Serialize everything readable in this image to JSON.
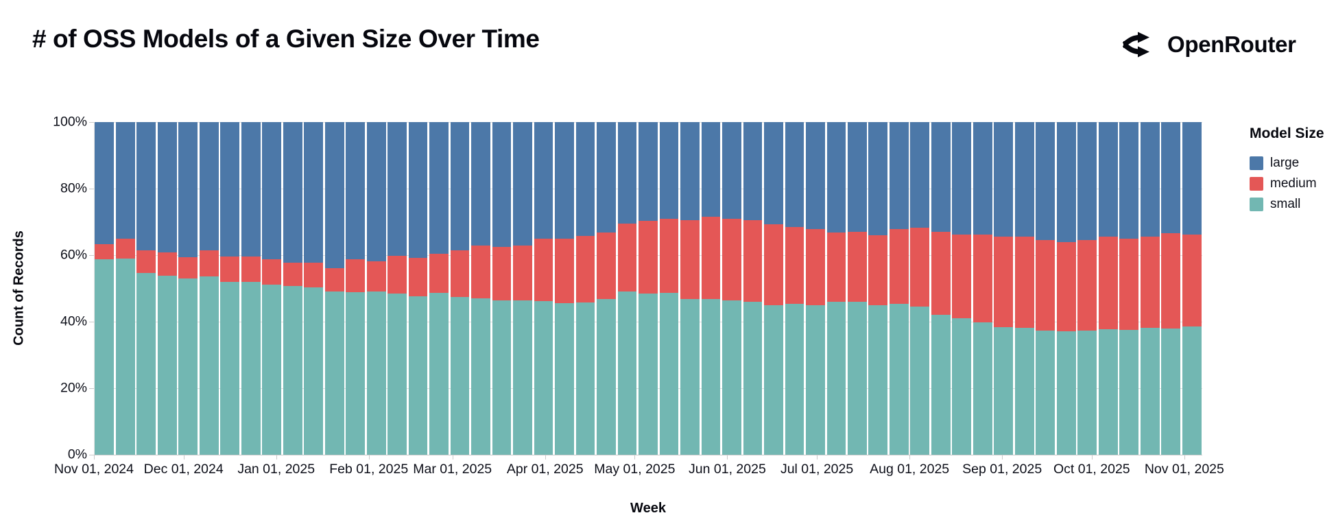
{
  "header": {
    "title": "# of OSS Models of a Given Size Over Time",
    "brand": "OpenRouter"
  },
  "chart_data": {
    "type": "bar",
    "stacked": "normalize",
    "title": "# of OSS Models of a Given Size Over Time",
    "xlabel": "Week",
    "ylabel": "Count of Records",
    "ylim": [
      0,
      100
    ],
    "grid": true,
    "legend_position": "right",
    "colors": {
      "large": "#4c78a8",
      "medium": "#e45756",
      "small": "#72b7b2"
    },
    "y_ticks": [
      {
        "label": "0%",
        "value": 0
      },
      {
        "label": "20%",
        "value": 20
      },
      {
        "label": "40%",
        "value": 40
      },
      {
        "label": "60%",
        "value": 60
      },
      {
        "label": "80%",
        "value": 80
      },
      {
        "label": "100%",
        "value": 100
      }
    ],
    "total_days": 371,
    "x_ticks": [
      {
        "label": "Nov 01, 2024",
        "day": 0
      },
      {
        "label": "Dec 01, 2024",
        "day": 30
      },
      {
        "label": "Jan 01, 2025",
        "day": 61
      },
      {
        "label": "Feb 01, 2025",
        "day": 92
      },
      {
        "label": "Mar 01, 2025",
        "day": 120
      },
      {
        "label": "Apr 01, 2025",
        "day": 151
      },
      {
        "label": "May 01, 2025",
        "day": 181
      },
      {
        "label": "Jun 01, 2025",
        "day": 212
      },
      {
        "label": "Jul 01, 2025",
        "day": 242
      },
      {
        "label": "Aug 01, 2025",
        "day": 273
      },
      {
        "label": "Sep 01, 2025",
        "day": 304
      },
      {
        "label": "Oct 01, 2025",
        "day": 334
      },
      {
        "label": "Nov 01, 2025",
        "day": 365
      }
    ],
    "weeks": [
      "2024-11-01",
      "2024-11-08",
      "2024-11-15",
      "2024-11-22",
      "2024-11-29",
      "2024-12-06",
      "2024-12-13",
      "2024-12-20",
      "2024-12-27",
      "2025-01-03",
      "2025-01-10",
      "2025-01-17",
      "2025-01-24",
      "2025-01-31",
      "2025-02-07",
      "2025-02-14",
      "2025-02-21",
      "2025-02-28",
      "2025-03-07",
      "2025-03-14",
      "2025-03-21",
      "2025-03-28",
      "2025-04-04",
      "2025-04-11",
      "2025-04-18",
      "2025-04-25",
      "2025-05-02",
      "2025-05-09",
      "2025-05-16",
      "2025-05-23",
      "2025-05-30",
      "2025-06-06",
      "2025-06-13",
      "2025-06-20",
      "2025-06-27",
      "2025-07-04",
      "2025-07-11",
      "2025-07-18",
      "2025-07-25",
      "2025-08-01",
      "2025-08-08",
      "2025-08-15",
      "2025-08-22",
      "2025-08-29",
      "2025-09-05",
      "2025-09-12",
      "2025-09-19",
      "2025-09-26",
      "2025-10-03",
      "2025-10-10",
      "2025-10-17",
      "2025-10-24",
      "2025-10-31"
    ],
    "series": [
      {
        "name": "small",
        "color": "#72b7b2",
        "values": [
          58.8,
          58.9,
          54.6,
          53.9,
          52.9,
          53.7,
          51.9,
          51.9,
          51.2,
          50.8,
          50.3,
          49.0,
          48.8,
          49.0,
          48.4,
          47.7,
          48.6,
          47.5,
          47.1,
          46.4,
          46.3,
          46.2,
          45.5,
          45.7,
          46.9,
          49.1,
          48.4,
          48.6,
          46.9,
          46.7,
          46.4,
          46.0,
          45.0,
          45.4,
          45.0,
          46.0,
          46.0,
          45.0,
          45.3,
          44.5,
          42.0,
          41.0,
          39.8,
          38.3,
          38.2,
          37.4,
          37.1,
          37.4,
          37.7,
          37.5,
          38.2,
          38.0,
          38.5
        ]
      },
      {
        "name": "medium",
        "color": "#e45756",
        "values": [
          4.5,
          6.0,
          6.8,
          6.9,
          6.5,
          7.7,
          7.6,
          7.6,
          7.6,
          7.0,
          7.4,
          7.0,
          10.0,
          9.1,
          11.4,
          11.4,
          11.9,
          13.9,
          15.8,
          16.1,
          16.6,
          18.8,
          19.5,
          20.1,
          19.9,
          20.3,
          22.0,
          22.4,
          23.7,
          24.8,
          24.6,
          24.6,
          24.3,
          23.1,
          22.8,
          20.9,
          21.1,
          20.9,
          22.5,
          23.7,
          25.1,
          25.1,
          26.4,
          27.2,
          27.3,
          27.2,
          26.9,
          27.2,
          27.9,
          27.5,
          27.4,
          28.6,
          27.7
        ]
      },
      {
        "name": "large",
        "color": "#4c78a8",
        "values": [
          36.7,
          35.1,
          38.6,
          39.2,
          40.6,
          38.6,
          40.5,
          40.5,
          41.2,
          42.2,
          42.3,
          44.0,
          41.2,
          41.9,
          40.2,
          40.9,
          39.5,
          38.6,
          37.1,
          37.5,
          37.1,
          35.0,
          35.0,
          34.2,
          33.2,
          30.6,
          29.6,
          29.0,
          29.4,
          28.5,
          29.0,
          29.4,
          30.7,
          31.5,
          32.2,
          33.1,
          32.9,
          34.1,
          32.2,
          31.8,
          32.9,
          33.9,
          33.8,
          34.5,
          34.5,
          35.4,
          36.0,
          35.4,
          34.4,
          35.0,
          34.4,
          33.4,
          33.8
        ]
      }
    ],
    "legend": {
      "title": "Model Size",
      "entries": [
        {
          "label": "large",
          "color": "#4c78a8"
        },
        {
          "label": "medium",
          "color": "#e45756"
        },
        {
          "label": "small",
          "color": "#72b7b2"
        }
      ]
    }
  }
}
